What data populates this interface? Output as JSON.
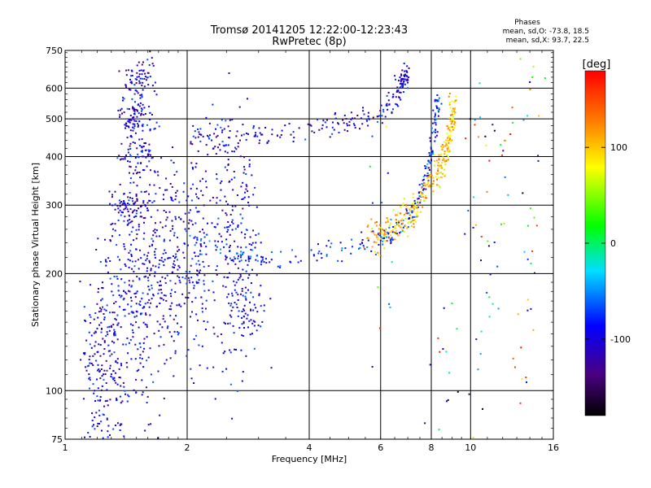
{
  "chart_data": {
    "type": "scatter",
    "title": "Tromsø 20141205 12:22:00-12:23:43",
    "subtitle": "RwPretec (8p)",
    "phase_stats": {
      "heading": "Phases",
      "line_o": "mean, sd,O: -73.8, 18.5",
      "line_x": "mean, sd,X:  93.7, 22.5"
    },
    "xlabel": "Frequency [MHz]",
    "ylabel": "Stationary phase Virtual Height [km]",
    "x_scale": "log",
    "y_scale": "log",
    "xlim": [
      1,
      16
    ],
    "ylim": [
      75,
      750
    ],
    "x_ticks": [
      1,
      2,
      4,
      6,
      8,
      10,
      16
    ],
    "x_tick_labels": [
      "1",
      "2",
      "4",
      "6",
      "8",
      "10",
      "16"
    ],
    "y_ticks": [
      75,
      100,
      200,
      300,
      400,
      500,
      600,
      750
    ],
    "y_tick_labels": [
      "75",
      "100",
      "200",
      "300",
      "400",
      "500",
      "600",
      "750"
    ],
    "grid": true,
    "colorbar": {
      "label": "[deg]",
      "range": [
        -180,
        180
      ],
      "ticks": [
        100,
        0,
        -100
      ],
      "tick_labels": [
        "100",
        "0",
        "-100"
      ]
    },
    "series": [
      {
        "trace": "F1 low-frequency cloud",
        "mode": "cloud",
        "phase_deg": [
          -140,
          -60
        ],
        "points": [
          [
            1.2,
            100
          ],
          [
            1.3,
            130
          ],
          [
            1.45,
            160
          ],
          [
            1.6,
            190
          ],
          [
            1.8,
            210
          ],
          [
            2.1,
            230
          ],
          [
            2.5,
            250
          ],
          [
            2.8,
            200
          ]
        ],
        "count": 1100,
        "height_spread": 0.35
      },
      {
        "trace": "Spread F spike near 1.5 MHz",
        "mode": "cloud",
        "phase_deg": [
          -150,
          -60
        ],
        "points": [
          [
            1.45,
            300
          ],
          [
            1.5,
            400
          ],
          [
            1.5,
            500
          ],
          [
            1.52,
            630
          ]
        ],
        "count": 320,
        "height_spread": 0.06
      },
      {
        "trace": "F region O-mode trace",
        "mode": "trace",
        "phase_deg": [
          -130,
          -40
        ],
        "points": [
          [
            2.0,
            250
          ],
          [
            2.5,
            225
          ],
          [
            3.0,
            218
          ],
          [
            4.0,
            220
          ],
          [
            5.0,
            235
          ],
          [
            6.0,
            245
          ],
          [
            6.5,
            258
          ],
          [
            7.0,
            275
          ],
          [
            7.4,
            300
          ],
          [
            7.7,
            340
          ],
          [
            7.9,
            380
          ],
          [
            8.1,
            440
          ],
          [
            8.2,
            500
          ],
          [
            8.3,
            560
          ]
        ],
        "count": 260,
        "height_spread": 0.03
      },
      {
        "trace": "F region X-mode trace",
        "mode": "trace",
        "phase_deg": [
          60,
          140
        ],
        "points": [
          [
            5.5,
            245
          ],
          [
            6.0,
            250
          ],
          [
            6.5,
            262
          ],
          [
            7.0,
            280
          ],
          [
            7.5,
            305
          ],
          [
            8.0,
            340
          ],
          [
            8.5,
            380
          ],
          [
            8.8,
            430
          ],
          [
            9.0,
            500
          ],
          [
            9.1,
            530
          ]
        ],
        "count": 320,
        "height_spread": 0.05
      },
      {
        "trace": "Upper echo trace",
        "mode": "trace",
        "phase_deg": [
          -150,
          -60
        ],
        "points": [
          [
            2.05,
            445
          ],
          [
            2.5,
            440
          ],
          [
            3.0,
            450
          ],
          [
            4.0,
            470
          ],
          [
            5.0,
            485
          ],
          [
            6.0,
            510
          ],
          [
            6.5,
            560
          ],
          [
            6.8,
            620
          ],
          [
            7.0,
            650
          ]
        ],
        "count": 240,
        "height_spread": 0.04
      },
      {
        "trace": "Scattered high-frequency echoes",
        "mode": "cloud",
        "phase_deg": [
          -180,
          180
        ],
        "points": [
          [
            6.0,
            180
          ],
          [
            6.0,
            400
          ],
          [
            10.5,
            420
          ],
          [
            11.0,
            300
          ],
          [
            11.0,
            200
          ],
          [
            12.0,
            450
          ],
          [
            13.5,
            130
          ],
          [
            14.0,
            240
          ],
          [
            14.5,
            620
          ],
          [
            10.0,
            100
          ],
          [
            8.5,
            120
          ]
        ],
        "count": 110,
        "height_spread": 0.2
      }
    ]
  }
}
